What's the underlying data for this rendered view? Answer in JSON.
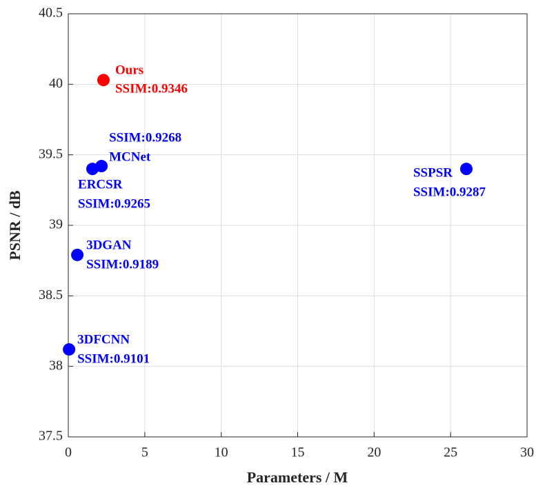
{
  "chart_data": {
    "type": "scatter",
    "xlabel": "Parameters / M",
    "ylabel": "PSNR / dB",
    "names": [
      "Ours",
      "MCNet",
      "ERCSR",
      "SSPSR",
      "3DGAN",
      "3DFCNN"
    ],
    "ssim_labels": [
      "SSIM:0.9346",
      "SSIM:0.9268",
      "SSIM:0.9265",
      "SSIM:0.9287",
      "SSIM:0.9189",
      "SSIM:0.9101"
    ],
    "x": [
      2.3,
      2.17,
      1.58,
      26.03,
      0.59,
      0.05
    ],
    "values": [
      40.03,
      39.42,
      39.4,
      39.4,
      38.79,
      38.12
    ],
    "colors": [
      "#ff0000",
      "#0000ff",
      "#0000ff",
      "#0000ff",
      "#0000ff",
      "#0000ff"
    ],
    "xlim": [
      0,
      30
    ],
    "xticks": [
      0,
      5,
      10,
      15,
      20,
      25,
      30
    ],
    "ylim": [
      37.5,
      40.5
    ],
    "yticks": [
      37.5,
      38,
      38.5,
      39,
      39.5,
      40,
      40.5
    ],
    "grid": true
  }
}
